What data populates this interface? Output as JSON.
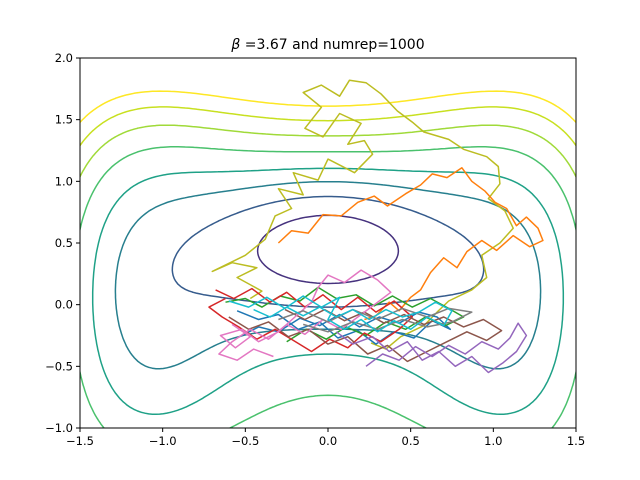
{
  "chart_data": {
    "type": "line",
    "title": "β =3.67 and numrep=1000",
    "title_symbol": "β",
    "title_rest": " =3.67 and numrep=1000",
    "xlabel": "",
    "ylabel": "",
    "xlim": [
      -1.5,
      1.5
    ],
    "ylim": [
      -1.0,
      2.0
    ],
    "x_ticks": [
      -1.5,
      -1.0,
      -0.5,
      0.0,
      0.5,
      1.0,
      1.5
    ],
    "y_ticks": [
      -1.0,
      -0.5,
      0.0,
      0.5,
      1.0,
      1.5,
      2.0
    ],
    "x_tick_labels": [
      "−1.5",
      "−1.0",
      "−0.5",
      "0.0",
      "0.5",
      "1.0",
      "1.5"
    ],
    "y_tick_labels": [
      "−1.0",
      "−0.5",
      "0.0",
      "0.5",
      "1.0",
      "1.5",
      "2.0"
    ],
    "grid": false,
    "legend": "none",
    "contour_levels": [
      -0.8,
      -0.5,
      -0.2,
      0.1,
      0.4,
      0.8,
      1.2,
      1.6,
      2.0
    ],
    "contour_colors": [
      "#440154",
      "#46327e",
      "#365c8d",
      "#277f8e",
      "#1fa187",
      "#4ac16d",
      "#a0da39",
      "#c8e020",
      "#fde725"
    ],
    "series": [
      {
        "color": "#bcbd22",
        "values": [
          [
            -0.47,
            0.05
          ],
          [
            -0.4,
            0.11
          ],
          [
            -0.55,
            0.22
          ],
          [
            -0.43,
            0.3
          ],
          [
            -0.58,
            0.34
          ],
          [
            -0.7,
            0.27
          ],
          [
            -0.5,
            0.4
          ],
          [
            -0.38,
            0.53
          ],
          [
            -0.32,
            0.72
          ],
          [
            -0.22,
            0.78
          ],
          [
            -0.3,
            0.94
          ],
          [
            -0.15,
            0.89
          ],
          [
            -0.21,
            1.07
          ],
          [
            -0.06,
            1.01
          ],
          [
            0.0,
            1.18
          ],
          [
            0.16,
            1.07
          ],
          [
            0.27,
            1.22
          ],
          [
            0.22,
            1.33
          ],
          [
            0.12,
            1.3
          ],
          [
            0.2,
            1.47
          ],
          [
            0.07,
            1.55
          ],
          [
            -0.03,
            1.36
          ],
          [
            -0.14,
            1.43
          ],
          [
            -0.04,
            1.6
          ],
          [
            -0.15,
            1.72
          ],
          [
            -0.04,
            1.78
          ],
          [
            0.07,
            1.69
          ],
          [
            0.13,
            1.82
          ],
          [
            0.23,
            1.8
          ],
          [
            0.32,
            1.71
          ],
          [
            0.42,
            1.57
          ],
          [
            0.51,
            1.48
          ],
          [
            0.58,
            1.4
          ],
          [
            0.73,
            1.34
          ],
          [
            0.82,
            1.26
          ],
          [
            0.96,
            1.2
          ],
          [
            1.03,
            1.12
          ],
          [
            1.04,
            0.98
          ],
          [
            0.97,
            0.86
          ],
          [
            1.07,
            0.76
          ],
          [
            1.12,
            0.62
          ],
          [
            1.04,
            0.5
          ],
          [
            0.93,
            0.4
          ],
          [
            0.96,
            0.22
          ],
          [
            0.87,
            0.12
          ],
          [
            0.73,
            0.03
          ],
          [
            0.66,
            -0.06
          ],
          [
            0.58,
            -0.17
          ],
          [
            0.44,
            -0.26
          ],
          [
            0.35,
            -0.36
          ],
          [
            0.26,
            -0.31
          ]
        ]
      },
      {
        "color": "#ff7f0e",
        "values": [
          [
            -0.3,
            0.5
          ],
          [
            -0.22,
            0.6
          ],
          [
            -0.12,
            0.58
          ],
          [
            -0.03,
            0.73
          ],
          [
            0.08,
            0.72
          ],
          [
            0.18,
            0.83
          ],
          [
            0.28,
            0.88
          ],
          [
            0.36,
            0.8
          ],
          [
            0.47,
            0.9
          ],
          [
            0.56,
            0.97
          ],
          [
            0.63,
            1.06
          ],
          [
            0.72,
            1.03
          ],
          [
            0.81,
            1.11
          ],
          [
            0.87,
            1.0
          ],
          [
            0.95,
            0.92
          ],
          [
            1.01,
            0.83
          ],
          [
            1.08,
            0.78
          ],
          [
            1.14,
            0.64
          ],
          [
            1.2,
            0.71
          ],
          [
            1.27,
            0.62
          ],
          [
            1.3,
            0.52
          ],
          [
            1.22,
            0.47
          ],
          [
            1.12,
            0.56
          ],
          [
            1.02,
            0.44
          ],
          [
            0.93,
            0.52
          ],
          [
            0.84,
            0.43
          ],
          [
            0.78,
            0.3
          ],
          [
            0.7,
            0.38
          ],
          [
            0.62,
            0.26
          ],
          [
            0.56,
            0.12
          ],
          [
            0.5,
            0.06
          ],
          [
            0.43,
            -0.05
          ],
          [
            0.37,
            0.02
          ],
          [
            0.29,
            -0.09
          ],
          [
            0.22,
            -0.12
          ]
        ]
      },
      {
        "color": "#1f77b4",
        "values": [
          [
            -0.55,
            -0.05
          ],
          [
            -0.42,
            -0.12
          ],
          [
            -0.3,
            -0.08
          ],
          [
            -0.18,
            -0.2
          ],
          [
            -0.05,
            -0.14
          ],
          [
            0.06,
            -0.27
          ],
          [
            0.18,
            -0.21
          ],
          [
            0.29,
            -0.32
          ],
          [
            0.4,
            -0.22
          ],
          [
            0.52,
            -0.27
          ],
          [
            0.63,
            -0.13
          ],
          [
            0.74,
            -0.2
          ],
          [
            0.66,
            -0.1
          ],
          [
            0.55,
            -0.06
          ],
          [
            0.43,
            -0.15
          ],
          [
            0.31,
            -0.1
          ],
          [
            0.19,
            -0.18
          ],
          [
            0.07,
            -0.08
          ],
          [
            -0.05,
            -0.17
          ],
          [
            -0.17,
            -0.11
          ],
          [
            -0.3,
            -0.22
          ],
          [
            -0.42,
            -0.18
          ],
          [
            -0.55,
            -0.27
          ]
        ]
      },
      {
        "color": "#2ca02c",
        "values": [
          [
            -0.62,
            0.02
          ],
          [
            -0.5,
            0.05
          ],
          [
            -0.4,
            -0.02
          ],
          [
            -0.29,
            0.07
          ],
          [
            -0.17,
            0.03
          ],
          [
            -0.06,
            0.14
          ],
          [
            0.05,
            0.05
          ],
          [
            0.17,
            0.08
          ],
          [
            0.28,
            -0.01
          ],
          [
            0.39,
            0.07
          ],
          [
            0.51,
            -0.02
          ],
          [
            0.62,
            0.05
          ],
          [
            0.73,
            -0.03
          ],
          [
            0.82,
            -0.1
          ],
          [
            0.71,
            -0.17
          ],
          [
            0.59,
            -0.1
          ],
          [
            0.47,
            -0.2
          ],
          [
            0.35,
            -0.14
          ],
          [
            0.23,
            -0.25
          ],
          [
            0.11,
            -0.18
          ],
          [
            -0.01,
            -0.28
          ],
          [
            -0.13,
            -0.2
          ],
          [
            -0.25,
            -0.3
          ]
        ]
      },
      {
        "color": "#d62728",
        "values": [
          [
            -0.68,
            0.12
          ],
          [
            -0.57,
            0.05
          ],
          [
            -0.46,
            0.13
          ],
          [
            -0.35,
            0.02
          ],
          [
            -0.25,
            0.1
          ],
          [
            -0.14,
            -0.02
          ],
          [
            -0.03,
            0.08
          ],
          [
            0.08,
            -0.04
          ],
          [
            0.18,
            0.06
          ],
          [
            0.29,
            -0.06
          ],
          [
            0.4,
            0.03
          ],
          [
            0.51,
            -0.1
          ],
          [
            0.43,
            -0.2
          ],
          [
            0.32,
            -0.3
          ],
          [
            0.22,
            -0.23
          ],
          [
            0.12,
            -0.35
          ],
          [
            0.01,
            -0.28
          ],
          [
            -0.1,
            -0.38
          ],
          [
            -0.21,
            -0.29
          ],
          [
            -0.32,
            -0.2
          ],
          [
            -0.43,
            -0.28
          ],
          [
            -0.54,
            -0.18
          ],
          [
            -0.64,
            -0.1
          ],
          [
            -0.72,
            -0.02
          ],
          [
            -0.62,
            0.05
          ]
        ]
      },
      {
        "color": "#8c564b",
        "values": [
          [
            -0.6,
            -0.1
          ],
          [
            -0.48,
            -0.2
          ],
          [
            -0.36,
            -0.14
          ],
          [
            -0.24,
            -0.26
          ],
          [
            -0.12,
            -0.2
          ],
          [
            0.0,
            -0.32
          ],
          [
            0.12,
            -0.26
          ],
          [
            0.24,
            -0.4
          ],
          [
            0.36,
            -0.33
          ],
          [
            0.48,
            -0.46
          ],
          [
            0.6,
            -0.38
          ],
          [
            0.72,
            -0.3
          ],
          [
            0.84,
            -0.22
          ],
          [
            0.96,
            -0.29
          ],
          [
            1.05,
            -0.21
          ],
          [
            0.94,
            -0.12
          ],
          [
            0.82,
            -0.18
          ],
          [
            0.7,
            -0.1
          ],
          [
            0.58,
            -0.16
          ],
          [
            0.46,
            -0.08
          ],
          [
            0.34,
            -0.15
          ],
          [
            0.22,
            -0.06
          ],
          [
            0.1,
            -0.13
          ],
          [
            -0.02,
            -0.04
          ],
          [
            -0.14,
            -0.12
          ],
          [
            -0.26,
            -0.04
          ]
        ]
      },
      {
        "color": "#e377c2",
        "values": [
          [
            -0.58,
            -0.16
          ],
          [
            -0.47,
            -0.26
          ],
          [
            -0.56,
            -0.35
          ],
          [
            -0.65,
            -0.25
          ],
          [
            -0.52,
            -0.2
          ],
          [
            -0.42,
            -0.3
          ],
          [
            -0.3,
            -0.22
          ],
          [
            -0.2,
            -0.1
          ],
          [
            -0.1,
            0.02
          ],
          [
            -0.06,
            0.14
          ],
          [
            0.0,
            0.24
          ],
          [
            0.1,
            0.18
          ],
          [
            0.2,
            0.28
          ],
          [
            0.3,
            0.2
          ],
          [
            0.38,
            0.1
          ],
          [
            0.28,
            0.0
          ],
          [
            0.18,
            -0.1
          ],
          [
            0.08,
            -0.2
          ],
          [
            -0.03,
            -0.12
          ],
          [
            -0.14,
            -0.24
          ],
          [
            -0.25,
            -0.16
          ],
          [
            -0.36,
            -0.28
          ],
          [
            -0.47,
            -0.2
          ],
          [
            -0.58,
            -0.3
          ],
          [
            -0.66,
            -0.4
          ],
          [
            -0.55,
            -0.45
          ],
          [
            -0.45,
            -0.36
          ],
          [
            -0.33,
            -0.42
          ]
        ]
      },
      {
        "color": "#7f7f7f",
        "values": [
          [
            -0.3,
            -0.12
          ],
          [
            -0.15,
            -0.05
          ],
          [
            0.0,
            -0.14
          ],
          [
            0.15,
            -0.04
          ],
          [
            0.3,
            -0.12
          ],
          [
            0.45,
            -0.03
          ],
          [
            0.6,
            -0.1
          ],
          [
            0.73,
            -0.03
          ],
          [
            0.87,
            -0.06
          ],
          [
            0.75,
            -0.14
          ],
          [
            0.6,
            -0.18
          ],
          [
            0.45,
            -0.12
          ],
          [
            0.3,
            -0.2
          ],
          [
            0.15,
            -0.14
          ],
          [
            0.0,
            -0.22
          ],
          [
            -0.15,
            -0.16
          ]
        ]
      },
      {
        "color": "#9467bd",
        "values": [
          [
            0.05,
            -0.22
          ],
          [
            0.15,
            -0.32
          ],
          [
            0.27,
            -0.26
          ],
          [
            0.37,
            -0.38
          ],
          [
            0.48,
            -0.3
          ],
          [
            0.57,
            -0.45
          ],
          [
            0.67,
            -0.38
          ],
          [
            0.77,
            -0.5
          ],
          [
            0.87,
            -0.42
          ],
          [
            0.97,
            -0.55
          ],
          [
            1.06,
            -0.47
          ],
          [
            1.14,
            -0.38
          ],
          [
            1.2,
            -0.25
          ],
          [
            1.15,
            -0.15
          ],
          [
            1.1,
            -0.27
          ],
          [
            1.03,
            -0.36
          ],
          [
            0.93,
            -0.3
          ],
          [
            0.83,
            -0.4
          ],
          [
            0.73,
            -0.33
          ],
          [
            0.63,
            -0.42
          ],
          [
            0.53,
            -0.34
          ],
          [
            0.43,
            -0.45
          ],
          [
            0.33,
            -0.4
          ],
          [
            0.23,
            -0.5
          ]
        ]
      },
      {
        "color": "#17becf",
        "values": [
          [
            -0.6,
            0.03
          ],
          [
            -0.48,
            -0.02
          ],
          [
            -0.37,
            0.06
          ],
          [
            -0.26,
            -0.03
          ],
          [
            -0.15,
            0.07
          ],
          [
            -0.04,
            -0.02
          ],
          [
            0.07,
            0.06
          ],
          [
            0.0,
            -0.12
          ],
          [
            0.1,
            -0.2
          ],
          [
            0.2,
            -0.12
          ],
          [
            0.3,
            -0.22
          ],
          [
            0.4,
            -0.13
          ],
          [
            0.5,
            -0.2
          ],
          [
            0.6,
            -0.1
          ],
          [
            0.7,
            -0.17
          ],
          [
            0.75,
            -0.05
          ],
          [
            0.65,
            0.02
          ],
          [
            0.55,
            -0.06
          ],
          [
            0.45,
            -0.1
          ],
          [
            0.35,
            -0.04
          ],
          [
            0.25,
            -0.12
          ],
          [
            0.15,
            -0.04
          ],
          [
            0.05,
            -0.1
          ],
          [
            -0.05,
            -0.02
          ],
          [
            -0.15,
            -0.09
          ],
          [
            -0.25,
            -0.02
          ],
          [
            -0.35,
            -0.1
          ],
          [
            -0.45,
            -0.04
          ]
        ]
      }
    ]
  }
}
